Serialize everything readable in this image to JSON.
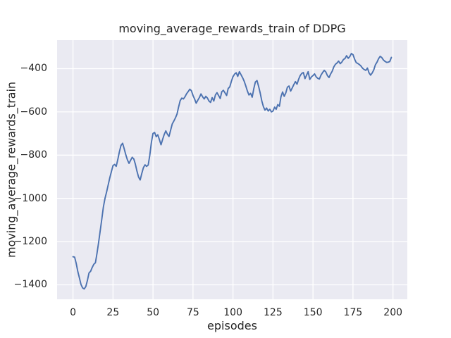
{
  "figure": {
    "background_color": "#ffffff",
    "plot_background_color": "#eaeaf2",
    "grid_color": "#ffffff",
    "text_color": "#262626"
  },
  "chart_data": {
    "type": "line",
    "title": "moving_average_rewards_train of DDPG",
    "xlabel": "episodes",
    "ylabel": "moving_average_rewards_train",
    "x_ticks": [
      0,
      25,
      50,
      75,
      100,
      125,
      150,
      175,
      200
    ],
    "y_ticks": [
      -400,
      -600,
      -800,
      -1000,
      -1200,
      -1400
    ],
    "xlim": [
      -9.95,
      208.95
    ],
    "ylim": [
      -1466.8,
      -268.1
    ],
    "grid": true,
    "legend": "none",
    "series": [
      {
        "name": "moving_average_rewards_train",
        "color": "#4c72b0",
        "x_start": 0,
        "x_step": 1,
        "values": [
          -1270,
          -1272,
          -1300,
          -1338,
          -1368,
          -1398,
          -1414,
          -1419,
          -1408,
          -1380,
          -1345,
          -1337,
          -1320,
          -1305,
          -1298,
          -1255,
          -1205,
          -1150,
          -1095,
          -1040,
          -1000,
          -970,
          -938,
          -905,
          -876,
          -848,
          -843,
          -852,
          -820,
          -785,
          -755,
          -745,
          -770,
          -798,
          -822,
          -838,
          -824,
          -810,
          -818,
          -842,
          -875,
          -902,
          -915,
          -885,
          -858,
          -845,
          -852,
          -846,
          -800,
          -742,
          -700,
          -695,
          -715,
          -706,
          -728,
          -752,
          -728,
          -705,
          -688,
          -703,
          -714,
          -685,
          -656,
          -643,
          -628,
          -610,
          -578,
          -548,
          -536,
          -540,
          -530,
          -516,
          -506,
          -495,
          -502,
          -524,
          -540,
          -560,
          -546,
          -533,
          -517,
          -530,
          -540,
          -528,
          -536,
          -550,
          -556,
          -534,
          -550,
          -522,
          -511,
          -524,
          -538,
          -507,
          -500,
          -512,
          -524,
          -492,
          -484,
          -458,
          -437,
          -425,
          -419,
          -436,
          -414,
          -428,
          -442,
          -458,
          -480,
          -504,
          -522,
          -514,
          -532,
          -492,
          -462,
          -455,
          -482,
          -512,
          -549,
          -576,
          -592,
          -582,
          -596,
          -588,
          -600,
          -596,
          -578,
          -588,
          -566,
          -574,
          -530,
          -508,
          -528,
          -512,
          -486,
          -480,
          -504,
          -490,
          -474,
          -460,
          -472,
          -450,
          -432,
          -422,
          -418,
          -446,
          -430,
          -414,
          -450,
          -438,
          -432,
          -424,
          -438,
          -445,
          -448,
          -430,
          -418,
          -408,
          -415,
          -432,
          -441,
          -425,
          -412,
          -392,
          -380,
          -374,
          -365,
          -377,
          -370,
          -358,
          -353,
          -340,
          -352,
          -344,
          -330,
          -335,
          -356,
          -372,
          -376,
          -381,
          -388,
          -398,
          -404,
          -408,
          -397,
          -419,
          -430,
          -420,
          -406,
          -382,
          -370,
          -354,
          -343,
          -349,
          -360,
          -366,
          -371,
          -370,
          -367,
          -348
        ]
      }
    ]
  }
}
